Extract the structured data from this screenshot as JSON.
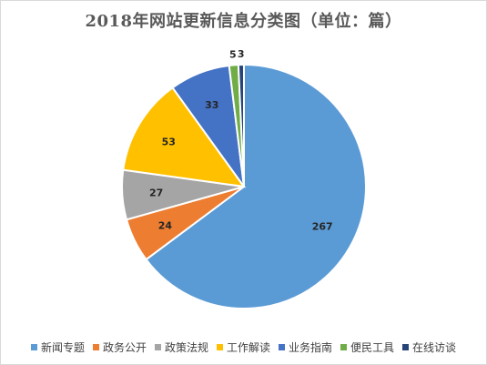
{
  "chart_data": {
    "type": "pie",
    "title": "2018年网站更新信息分类图（单位：篇）",
    "categories": [
      "新闻专题",
      "政务公开",
      "政策法规",
      "工作解读",
      "业务指南",
      "便民工具",
      "在线访谈"
    ],
    "values": [
      267,
      24,
      27,
      53,
      33,
      5,
      3
    ],
    "colors": [
      "#5b9bd5",
      "#ed7d31",
      "#a5a5a5",
      "#ffc000",
      "#4472c4",
      "#70ad47",
      "#264478"
    ],
    "data_labels": true,
    "start_angle_deg": 0,
    "direction": "clockwise",
    "legend_position": "bottom"
  }
}
